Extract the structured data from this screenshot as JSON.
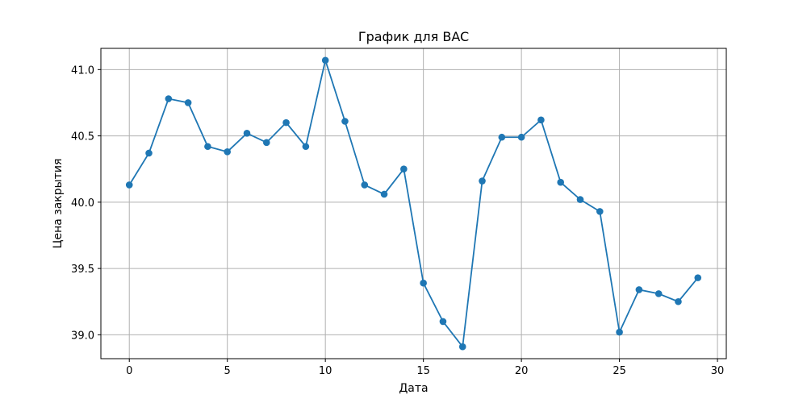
{
  "chart_data": {
    "type": "line",
    "title": "График для BAC",
    "xlabel": "Дата",
    "ylabel": "Цена закрытия",
    "xlim": [
      -1.45,
      30.45
    ],
    "ylim": [
      38.82,
      41.16
    ],
    "xticks": [
      0,
      5,
      10,
      15,
      20,
      25,
      30
    ],
    "xtick_labels": [
      "0",
      "5",
      "10",
      "15",
      "20",
      "25",
      "30"
    ],
    "yticks": [
      39.0,
      39.5,
      40.0,
      40.5,
      41.0
    ],
    "ytick_labels": [
      "39.0",
      "39.5",
      "40.0",
      "40.5",
      "41.0"
    ],
    "grid": true,
    "legend": "none",
    "colors": {
      "line": "#1f77b4",
      "grid": "#b0b0b0",
      "axis": "#000000"
    },
    "series": [
      {
        "marker": "circle",
        "x": [
          0,
          1,
          2,
          3,
          4,
          5,
          6,
          7,
          8,
          9,
          10,
          11,
          12,
          13,
          14,
          15,
          16,
          17,
          18,
          19,
          20,
          21,
          22,
          23,
          24,
          25,
          26,
          27,
          28,
          29
        ],
        "y": [
          40.13,
          40.37,
          40.78,
          40.75,
          40.42,
          40.38,
          40.52,
          40.45,
          40.6,
          40.42,
          41.07,
          40.61,
          40.13,
          40.06,
          40.25,
          39.39,
          39.1,
          38.91,
          40.16,
          40.49,
          40.49,
          40.62,
          40.15,
          40.02,
          39.93,
          39.02,
          39.34,
          39.31,
          39.25,
          39.43
        ]
      }
    ]
  }
}
